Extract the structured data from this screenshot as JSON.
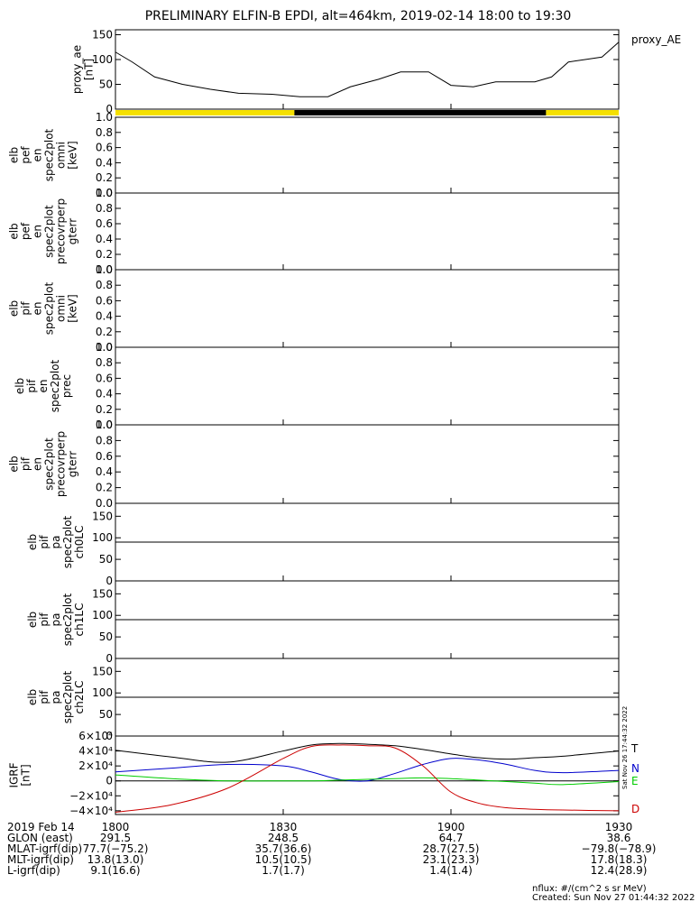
{
  "title": "PRELIMINARY ELFIN-B EPDI, alt=464km, 2019-02-14 18:00 to 19:30",
  "colors": {
    "yellow": "#f5e000",
    "black": "#000000",
    "T": "#000000",
    "N": "#0000cc",
    "E": "#00cc00",
    "D": "#cc0000"
  },
  "orbit_bar": {
    "segments": [
      {
        "start": 0,
        "end": 32,
        "color": "yellow"
      },
      {
        "start": 32,
        "end": 77,
        "color": "black"
      },
      {
        "start": 77,
        "end": 90,
        "color": "yellow"
      }
    ]
  },
  "panels": [
    {
      "id": "ae",
      "ylabel": [
        "proxy_ae",
        "[nT]"
      ],
      "yticks": [
        "0",
        "50",
        "100",
        "150"
      ],
      "legend": "proxy_AE"
    },
    {
      "id": "p1",
      "ylabel": [
        "elb",
        "pef",
        "en",
        "spec2plot",
        "omni",
        "[keV]"
      ],
      "yticks": [
        "0.0",
        "0.2",
        "0.4",
        "0.6",
        "0.8",
        "1.0"
      ]
    },
    {
      "id": "p2",
      "ylabel": [
        "elb",
        "pef",
        "en",
        "spec2plot",
        "precovrperp",
        "gterr"
      ],
      "yticks": [
        "0.0",
        "0.2",
        "0.4",
        "0.6",
        "0.8",
        "1.0"
      ]
    },
    {
      "id": "p3",
      "ylabel": [
        "elb",
        "pif",
        "en",
        "spec2plot",
        "omni",
        "[keV]"
      ],
      "yticks": [
        "0.0",
        "0.2",
        "0.4",
        "0.6",
        "0.8",
        "1.0"
      ]
    },
    {
      "id": "p4",
      "ylabel": [
        "elb",
        "pif",
        "en",
        "spec2plot",
        "prec"
      ],
      "yticks": [
        "0.0",
        "0.2",
        "0.4",
        "0.6",
        "0.8",
        "1.0"
      ]
    },
    {
      "id": "p5",
      "ylabel": [
        "elb",
        "pif",
        "en",
        "spec2plot",
        "precovrperp",
        "gterr"
      ],
      "yticks": [
        "0.0",
        "0.2",
        "0.4",
        "0.6",
        "0.8",
        "1.0"
      ]
    },
    {
      "id": "p6",
      "ylabel": [
        "elb",
        "pif",
        "pa",
        "spec2plot",
        "ch0LC"
      ],
      "yticks": [
        "0",
        "50",
        "100",
        "150"
      ]
    },
    {
      "id": "p7",
      "ylabel": [
        "elb",
        "pif",
        "pa",
        "spec2plot",
        "ch1LC"
      ],
      "yticks": [
        "0",
        "50",
        "100",
        "150"
      ]
    },
    {
      "id": "p8",
      "ylabel": [
        "elb",
        "pif",
        "pa",
        "spec2plot",
        "ch2LC"
      ],
      "yticks": [
        "0",
        "50",
        "100",
        "150"
      ]
    },
    {
      "id": "grf",
      "ylabel": [
        "IGRF",
        "[nT]"
      ],
      "yticks": [
        "−4×10⁴",
        "−2×10⁴",
        "0",
        "2×10⁴",
        "4×10⁴",
        "6×10⁴"
      ]
    }
  ],
  "grf_legend": [
    "T",
    "N",
    "E",
    "D"
  ],
  "side_stamp": "Sat Nov 26 17:44:32 2022",
  "xaxis": {
    "ticks": [
      "1800",
      "1830",
      "1900",
      "1930"
    ],
    "rows": [
      {
        "label": "2019 Feb 14",
        "values": [
          "1800",
          "1830",
          "1900",
          "1930"
        ]
      },
      {
        "label": "GLON (east)",
        "values": [
          "291.5",
          "248.5",
          "64.7",
          "38.6"
        ]
      },
      {
        "label": "MLAT-igrf(dip)",
        "values": [
          "77.7(−75.2)",
          "35.7(36.6)",
          "28.7(27.5)",
          "−79.8(−78.9)"
        ]
      },
      {
        "label": "MLT-igrf(dip)",
        "values": [
          "13.8(13.0)",
          "10.5(10.5)",
          "23.1(23.3)",
          "17.8(18.3)"
        ]
      },
      {
        "label": "L-igrf(dip)",
        "values": [
          "9.1(16.6)",
          "1.7(1.7)",
          "1.4(1.4)",
          "12.4(28.9)"
        ]
      }
    ]
  },
  "footer": {
    "line1": "nflux: #/(cm^2 s sr MeV)",
    "line2": "Created: Sun Nov 27 01:44:32 2022"
  },
  "chart_data": [
    {
      "type": "line",
      "title": "PRELIMINARY ELFIN-B EPDI, alt=464km, 2019-02-14 18:00 to 19:30",
      "xlabel": "",
      "ylabel": "proxy_ae [nT]",
      "x_minutes_since_1800": [
        0,
        3,
        7,
        12,
        17,
        22,
        28,
        33,
        38,
        42,
        47,
        51,
        56,
        60,
        64,
        68,
        72,
        75,
        78,
        81,
        84,
        87,
        90
      ],
      "series": [
        {
          "name": "proxy_AE",
          "values": [
            115,
            95,
            65,
            50,
            40,
            32,
            30,
            25,
            25,
            45,
            60,
            75,
            75,
            48,
            45,
            55,
            55,
            55,
            65,
            95,
            100,
            105,
            135
          ]
        }
      ],
      "ylim": [
        0,
        160
      ]
    },
    {
      "type": "line",
      "ylabel": "IGRF [nT]",
      "x_minutes_since_1800": [
        0,
        10,
        20,
        30,
        35,
        40,
        45,
        50,
        55,
        60,
        65,
        70,
        75,
        80,
        90
      ],
      "series": [
        {
          "name": "T",
          "values": [
            41000,
            32000,
            25000,
            40000,
            48000,
            50000,
            49000,
            47000,
            42000,
            36000,
            31000,
            29000,
            31000,
            33000,
            40000
          ]
        },
        {
          "name": "N",
          "values": [
            12000,
            17000,
            22000,
            20000,
            12000,
            2000,
            0,
            10000,
            22000,
            30000,
            28000,
            22000,
            14000,
            11000,
            14000
          ]
        },
        {
          "name": "E",
          "values": [
            8000,
            3000,
            0,
            0,
            0,
            1000,
            2000,
            3000,
            4000,
            3000,
            1000,
            -1000,
            -3000,
            -5000,
            -1000
          ]
        },
        {
          "name": "D",
          "values": [
            -42000,
            -32000,
            -10000,
            30000,
            46000,
            48000,
            47000,
            44000,
            20000,
            -15000,
            -30000,
            -36000,
            -38000,
            -39000,
            -40000
          ]
        }
      ],
      "ylim": [
        -45000,
        60000
      ]
    }
  ]
}
